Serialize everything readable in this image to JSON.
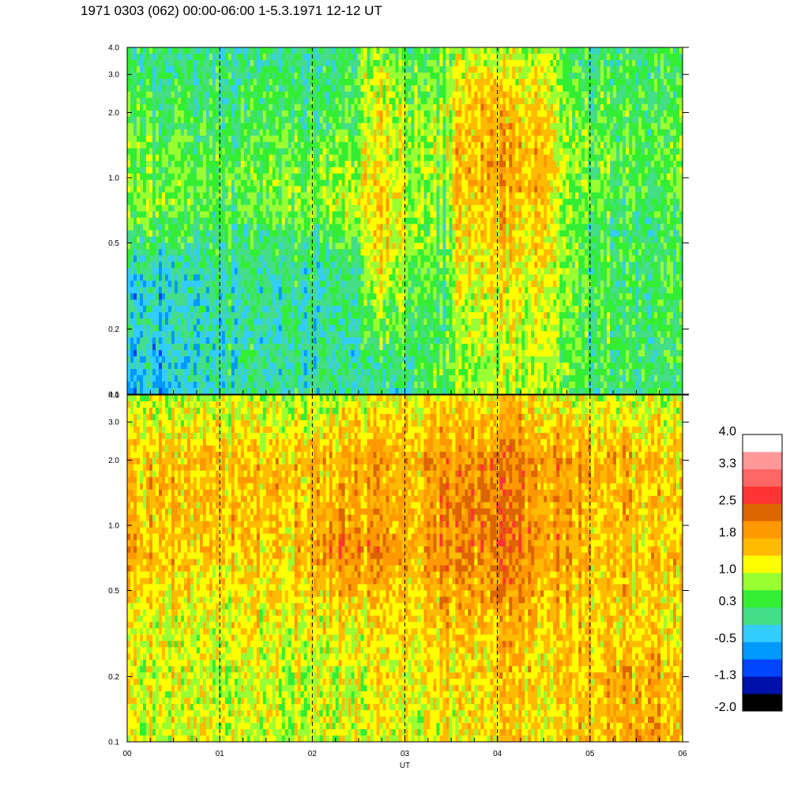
{
  "title": "1971 0303 (062) 00:00-06:00 1-5.3.1971  12-12 UT",
  "chart_data": {
    "type": "heatmap",
    "xlabel": "UT",
    "x_ticks": [
      "00",
      "01",
      "02",
      "03",
      "04",
      "05",
      "06"
    ],
    "xlim": [
      0,
      6
    ],
    "panels": [
      {
        "name": "",
        "y_ticks": [
          "0.1",
          "0.2",
          "0.5",
          "1.0",
          "2.0",
          "3.0",
          "4.0"
        ],
        "y_values": [
          0.1,
          0.2,
          0.5,
          1.0,
          2.0,
          3.0,
          4.0
        ],
        "ylim": [
          0.1,
          4.0
        ],
        "y_scale": "log",
        "level_grid": {
          "times": [
            0,
            0.5,
            1,
            1.5,
            2,
            2.5,
            2.65,
            3,
            3.45,
            3.6,
            4,
            4.5,
            4.7,
            5,
            5.5,
            6
          ],
          "freqs": [
            0.1,
            0.2,
            0.35,
            0.5,
            0.8,
            1.0,
            2.0,
            4.0
          ],
          "levels": [
            [
              -0.5,
              -0.3,
              0.0,
              0.0,
              0.0,
              0.0,
              0.0,
              0.0,
              0.5,
              0.8,
              0.9,
              0.8,
              0.5,
              0.3,
              0.2,
              0.2
            ],
            [
              -0.3,
              -0.2,
              0.0,
              0.0,
              0.0,
              0.0,
              0.6,
              0.5,
              0.3,
              1.0,
              1.1,
              1.0,
              0.6,
              0.4,
              0.3,
              0.3
            ],
            [
              -0.3,
              -0.2,
              0.0,
              0.0,
              0.0,
              0.1,
              1.2,
              0.8,
              0.3,
              1.2,
              1.3,
              1.2,
              0.7,
              0.4,
              0.3,
              0.3
            ],
            [
              0.3,
              0.3,
              0.2,
              0.2,
              0.2,
              0.4,
              1.5,
              1.0,
              0.5,
              1.4,
              1.5,
              1.3,
              0.7,
              0.4,
              0.2,
              0.2
            ],
            [
              0.8,
              0.7,
              0.5,
              0.6,
              0.8,
              1.1,
              1.6,
              1.0,
              0.6,
              1.6,
              1.7,
              1.5,
              0.8,
              0.5,
              0.4,
              0.4
            ],
            [
              0.6,
              0.6,
              0.5,
              0.6,
              0.6,
              0.8,
              1.4,
              0.9,
              0.8,
              1.7,
              1.9,
              1.6,
              0.9,
              0.6,
              0.5,
              0.5
            ],
            [
              0.4,
              0.3,
              0.3,
              0.3,
              0.3,
              0.5,
              1.4,
              0.8,
              0.7,
              1.6,
              1.7,
              1.4,
              0.7,
              0.5,
              0.4,
              0.4
            ],
            [
              0.2,
              0.1,
              0.1,
              0.1,
              0.1,
              0.3,
              0.9,
              0.5,
              0.4,
              1.0,
              1.0,
              0.9,
              0.4,
              0.2,
              0.2,
              0.2
            ]
          ]
        }
      },
      {
        "name": "",
        "y_ticks": [
          "0.1",
          "0.2",
          "0.5",
          "1.0",
          "2.0",
          "3.0",
          "4.0"
        ],
        "y_values": [
          0.1,
          0.2,
          0.5,
          1.0,
          2.0,
          3.0,
          4.0
        ],
        "ylim": [
          0.1,
          4.0
        ],
        "y_scale": "log",
        "level_grid": {
          "times": [
            0,
            0.5,
            1,
            1.5,
            2,
            2.3,
            2.6,
            3,
            3.5,
            4,
            4.5,
            5,
            5.5,
            6
          ],
          "freqs": [
            0.1,
            0.2,
            0.35,
            0.5,
            0.8,
            1.0,
            2.0,
            4.0
          ],
          "levels": [
            [
              1.1,
              1.2,
              1.0,
              1.0,
              1.0,
              1.0,
              1.0,
              1.0,
              1.2,
              1.4,
              1.3,
              1.5,
              1.8,
              1.7
            ],
            [
              1.1,
              1.2,
              1.0,
              1.0,
              1.0,
              1.0,
              1.1,
              1.2,
              1.3,
              1.5,
              1.4,
              1.5,
              1.7,
              1.6
            ],
            [
              1.3,
              1.2,
              1.1,
              1.2,
              1.3,
              1.3,
              1.2,
              1.3,
              1.5,
              1.6,
              1.5,
              1.4,
              1.4,
              1.4
            ],
            [
              1.5,
              1.4,
              1.2,
              1.3,
              1.4,
              1.6,
              1.5,
              1.4,
              1.8,
              1.9,
              1.7,
              1.5,
              1.4,
              1.6
            ],
            [
              1.8,
              1.6,
              1.5,
              1.4,
              1.7,
              2.2,
              2.0,
              1.7,
              2.0,
              2.2,
              1.9,
              1.6,
              1.5,
              1.6
            ],
            [
              1.6,
              1.6,
              1.5,
              1.5,
              1.7,
              1.9,
              1.8,
              1.6,
              2.0,
              2.2,
              1.9,
              1.6,
              1.5,
              1.5
            ],
            [
              1.6,
              1.6,
              1.5,
              1.5,
              1.6,
              1.6,
              1.7,
              1.6,
              2.0,
              2.1,
              1.9,
              1.7,
              1.6,
              1.6
            ],
            [
              1.0,
              1.0,
              0.9,
              0.9,
              0.9,
              1.0,
              1.0,
              1.1,
              1.3,
              1.3,
              1.2,
              1.0,
              1.0,
              1.0
            ]
          ]
        }
      }
    ],
    "colorbar": {
      "labels": [
        "4.0",
        "3.3",
        "2.5",
        "1.8",
        "1.0",
        "0.3",
        "-0.5",
        "-1.3",
        "-2.0"
      ],
      "label_values": [
        4.0,
        3.3,
        2.5,
        1.8,
        1.0,
        0.3,
        -0.5,
        -1.3,
        -2.0
      ],
      "range": [
        -2.0,
        4.0
      ],
      "colors": [
        "#000000",
        "#0010aa",
        "#0044ff",
        "#0099ff",
        "#33ccff",
        "#44dd88",
        "#33ee33",
        "#99ff33",
        "#ffff00",
        "#ffbb00",
        "#ff9900",
        "#dd6600",
        "#ff3333",
        "#ff6666",
        "#ff9999",
        "#ffffff"
      ]
    },
    "vertical_dashed_lines_at": [
      1,
      2,
      3,
      4,
      5
    ],
    "grid": false
  }
}
